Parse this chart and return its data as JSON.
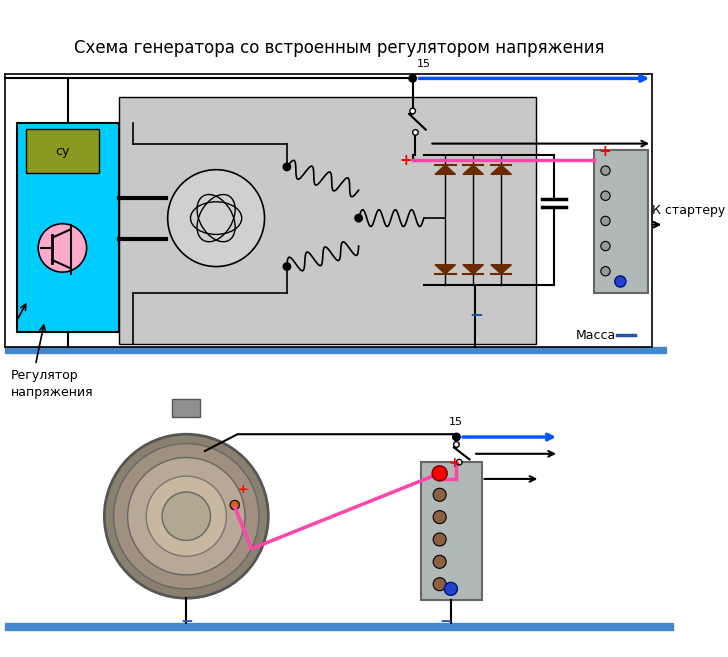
{
  "title": "Схема генератора со встроенным регулятором напряжения",
  "title_fontsize": 12,
  "bg_color": "#ffffff",
  "label_massa": "Масса",
  "label_k_starteru": "К стартеру",
  "label_regulyator": "Регулятор\nнапряжения",
  "label_su": "су",
  "label_15_top": "15",
  "label_15_bottom": "15",
  "cyan_box_color": "#00ccff",
  "gray_box_color": "#c8c8c8",
  "gray_box2_color": "#b0b8b8",
  "dark_brown": "#6b2a00",
  "pink_wire": "#ff44aa",
  "blue_wire": "#0055ff",
  "ground_bar_color": "#4488cc",
  "olive_color": "#6b7a2a"
}
